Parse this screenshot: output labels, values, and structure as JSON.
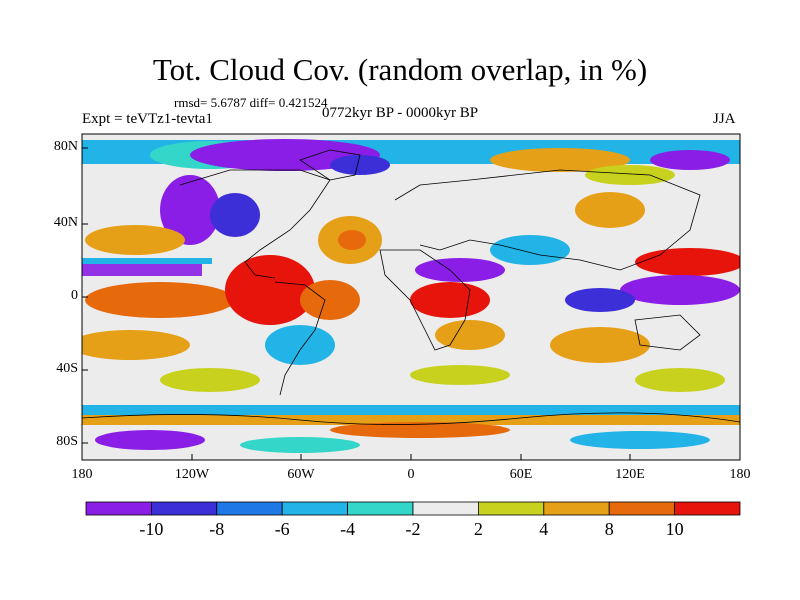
{
  "title": "Tot. Cloud Cov. (random overlap, in %)",
  "stats": "rmsd= 5.6787 diff= 0.421524",
  "experiment": "Expt = teVTz1-tevta1",
  "period": "0772kyr BP - 0000kyr BP",
  "season": "JJA",
  "map": {
    "x_ticks": [
      "180",
      "120W",
      "60W",
      "0",
      "60E",
      "120E",
      "180"
    ],
    "y_ticks": [
      "80N",
      "40N",
      "0",
      "40S",
      "80S"
    ]
  },
  "colorbar": {
    "labels": [
      "-10",
      "-8",
      "-6",
      "-4",
      "-2",
      "2",
      "4",
      "8",
      "10"
    ],
    "colors": [
      "#8a1ee6",
      "#3c2fd8",
      "#1e78e6",
      "#22b4e6",
      "#33d6c8",
      "#ececec",
      "#c8d21e",
      "#e6a018",
      "#e66a0c",
      "#e6140a"
    ]
  }
}
